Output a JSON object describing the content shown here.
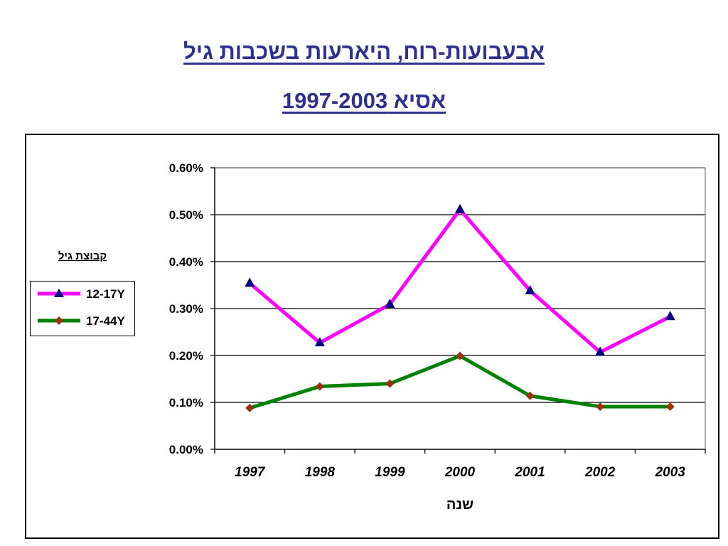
{
  "slide": {
    "title_line1": "אבעבועות-רוח, היארעות בשכבות גיל",
    "title_line2": "אסיא 1997-2003"
  },
  "legend": {
    "title": "קבוצת גיל"
  },
  "colors": {
    "series1_line": "#ff00ff",
    "series1_marker": "#000080",
    "series2_line": "#008000",
    "series2_marker": "#a0300a",
    "title": "#2e3192"
  },
  "chart_data": {
    "type": "line",
    "categories": [
      "1997",
      "1998",
      "1999",
      "2000",
      "2001",
      "2002",
      "2003"
    ],
    "series": [
      {
        "name": "12-17Y",
        "values": [
          0.354,
          0.227,
          0.309,
          0.511,
          0.338,
          0.207,
          0.283
        ],
        "marker": "triangle"
      },
      {
        "name": "17-44Y",
        "values": [
          0.088,
          0.134,
          0.14,
          0.199,
          0.114,
          0.091,
          0.091
        ],
        "marker": "diamond"
      }
    ],
    "yticks": [
      "0.00%",
      "0.10%",
      "0.20%",
      "0.30%",
      "0.40%",
      "0.50%",
      "0.60%"
    ],
    "ylim": [
      0,
      0.6
    ],
    "xlabel": "שנה",
    "ylabel": "",
    "grid": "horizontal",
    "legend_position": "left"
  }
}
